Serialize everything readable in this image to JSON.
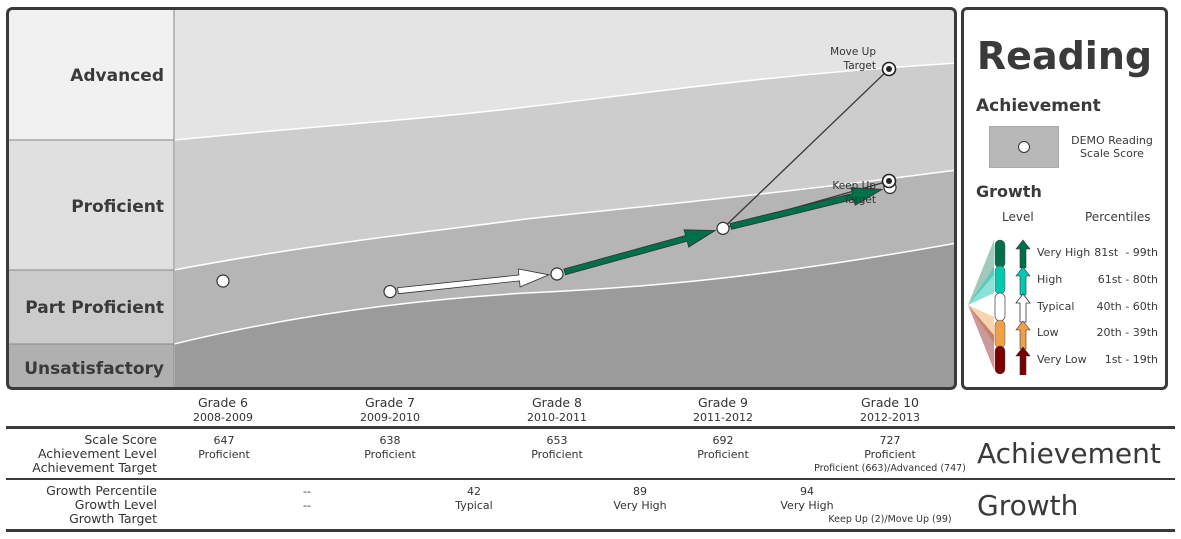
{
  "chart_data": {
    "type": "line",
    "subject": "Reading",
    "levels": [
      "Advanced",
      "Proficient",
      "Part Proficient",
      "Unsatisfactory"
    ],
    "categories": [
      "Grade 6",
      "Grade 7",
      "Grade 8",
      "Grade 9",
      "Grade 10"
    ],
    "years": [
      "2008-2009",
      "2009-2010",
      "2010-2011",
      "2011-2012",
      "2012-2013"
    ],
    "scale_scores": [
      647,
      638,
      653,
      692,
      727
    ],
    "achievement_levels": [
      "Proficient",
      "Proficient",
      "Proficient",
      "Proficient",
      "Proficient"
    ],
    "achievement_target": "Proficient (663)/Advanced (747)",
    "growth_percentiles": [
      "--",
      "42",
      "89",
      "94"
    ],
    "growth_levels": [
      "--",
      "Typical",
      "Very High",
      "Very High"
    ],
    "growth_target": "Keep Up (2)/Move Up (99)",
    "move_up_target_label": [
      "Move Up",
      "Target"
    ],
    "keep_up_target_label": [
      "Keep Up",
      "Target"
    ],
    "growth_arrow_colors": [
      "#ffffff",
      "#00704a",
      "#00704a"
    ]
  },
  "legend": {
    "title": "Reading",
    "achievement_heading": "Achievement",
    "marker_label": [
      "DEMO Reading",
      "Scale Score"
    ],
    "growth_heading": "Growth",
    "level_header": "Level",
    "percentiles_header": "Percentiles",
    "growth_rows": [
      {
        "level": "Very High",
        "range": "81st  - 99th",
        "color": "#00704a"
      },
      {
        "level": "High",
        "range": "61st - 80th",
        "color": "#00c9b0"
      },
      {
        "level": "Typical",
        "range": "40th - 60th",
        "color": "#ffffff"
      },
      {
        "level": "Low",
        "range": "20th - 39th",
        "color": "#f0a048"
      },
      {
        "level": "Very Low",
        "range": "1st - 19th",
        "color": "#7a0000"
      }
    ]
  },
  "table": {
    "achievement_rows": [
      "Scale Score",
      "Achievement Level",
      "Achievement Target"
    ],
    "growth_rows": [
      "Growth Percentile",
      "Growth Level",
      "Growth Target"
    ],
    "achievement_title": "Achievement",
    "growth_title": "Growth"
  }
}
